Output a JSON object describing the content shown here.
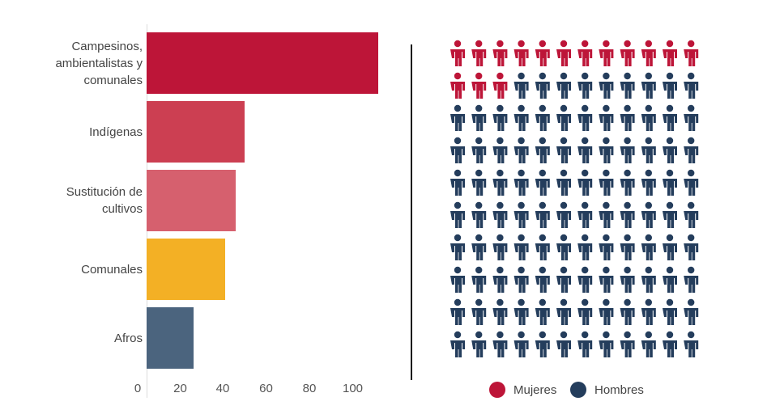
{
  "chart_data": [
    {
      "type": "bar",
      "orientation": "horizontal",
      "categories": [
        "Campesinos, ambientalistas y comunales",
        "Indígenas",
        "Sustitución de cultivos",
        "Comunales",
        "Afros"
      ],
      "values": [
        109,
        46,
        42,
        37,
        22
      ],
      "colors": [
        "#BD1538",
        "#CC3F52",
        "#D6606E",
        "#F3B025",
        "#4B647E"
      ],
      "xticks": [
        "0",
        "20",
        "40",
        "60",
        "80",
        "100"
      ],
      "xlim": [
        0,
        115
      ]
    },
    {
      "type": "waffle",
      "columns": 12,
      "rows": 10,
      "series": [
        {
          "name": "Mujeres",
          "count": 15,
          "color": "#BD1538"
        },
        {
          "name": "Hombres",
          "count": 105,
          "color": "#243D5C"
        }
      ]
    }
  ]
}
